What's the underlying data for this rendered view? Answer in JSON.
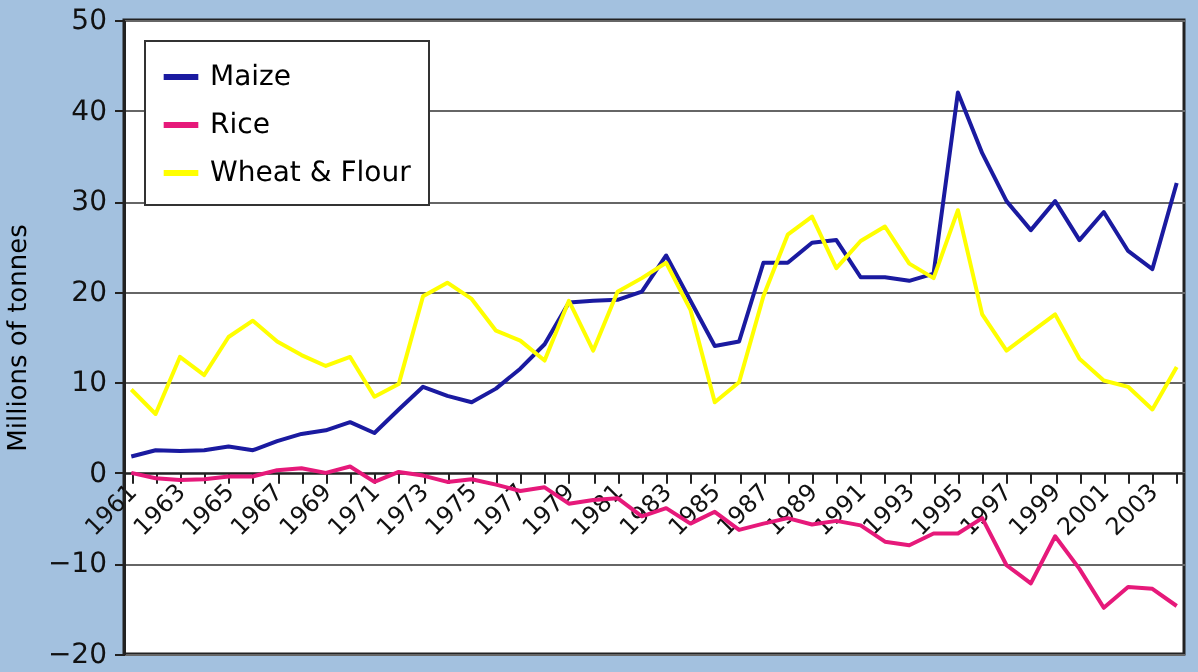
{
  "chart_data": {
    "type": "line",
    "ylabel": "Millions of tonnes",
    "categories": [
      "1961",
      null,
      "1963",
      null,
      "1965",
      null,
      "1967",
      null,
      "1969",
      null,
      "1971",
      null,
      "1973",
      null,
      "1975",
      null,
      "1977",
      null,
      "1979",
      null,
      "1981",
      null,
      "1983",
      null,
      "1985",
      null,
      "1987",
      null,
      "1989",
      null,
      "1991",
      null,
      "1993",
      null,
      "1995",
      null,
      "1997",
      null,
      "1999",
      null,
      "2001",
      null,
      "2003",
      null
    ],
    "series": [
      {
        "name": "Maize",
        "color": "#1a1aa0",
        "values": [
          1.8,
          2.5,
          2.4,
          2.5,
          2.9,
          2.5,
          3.5,
          4.3,
          4.7,
          5.6,
          4.4,
          7,
          9.5,
          8.5,
          7.8,
          9.3,
          11.5,
          14.2,
          18.8,
          19,
          19.1,
          20,
          24,
          19,
          14,
          14.5,
          23.2,
          23.2,
          25.4,
          25.7,
          21.6,
          21.6,
          21.2,
          22,
          42,
          35.3,
          30,
          26.8,
          30,
          25.7,
          28.8,
          24.5,
          22.5,
          32
        ]
      },
      {
        "name": "Rice",
        "color": "#e6197a",
        "values": [
          0,
          -0.6,
          -0.8,
          -0.7,
          -0.4,
          -0.4,
          0.3,
          0.5,
          0,
          0.7,
          -1,
          0.1,
          -0.3,
          -1,
          -0.7,
          -1.3,
          -2,
          -1.6,
          -3.4,
          -3,
          -2.8,
          -4.8,
          -3.9,
          -5.6,
          -4.3,
          -6.3,
          -5.6,
          -5,
          -5.7,
          -5.3,
          -5.8,
          -7.6,
          -8,
          -6.7,
          -6.7,
          -5,
          -10.2,
          -12.2,
          -7,
          -10.6,
          -14.9,
          -12.6,
          -12.8,
          -14.7
        ]
      },
      {
        "name": "Wheat & Flour",
        "color": "#ffff00",
        "values": [
          9.2,
          6.5,
          12.8,
          10.8,
          15,
          16.8,
          14.5,
          13,
          11.8,
          12.8,
          8.4,
          9.8,
          19.5,
          21,
          19.2,
          15.7,
          14.6,
          12.4,
          19,
          13.5,
          20,
          21.5,
          23.2,
          18,
          7.8,
          10,
          19.5,
          26.3,
          28.3,
          22.6,
          25.6,
          27.2,
          23.1,
          21.5,
          29,
          17.5,
          13.5,
          15.5,
          17.5,
          12.6,
          10.2,
          9.5,
          7,
          11.7
        ]
      }
    ],
    "ylim": [
      -20,
      50
    ],
    "yticks": [
      -20,
      -10,
      0,
      10,
      20,
      30,
      40,
      50
    ],
    "grid": "y",
    "legend": "top left",
    "marker": "none",
    "line_style": "solid"
  }
}
